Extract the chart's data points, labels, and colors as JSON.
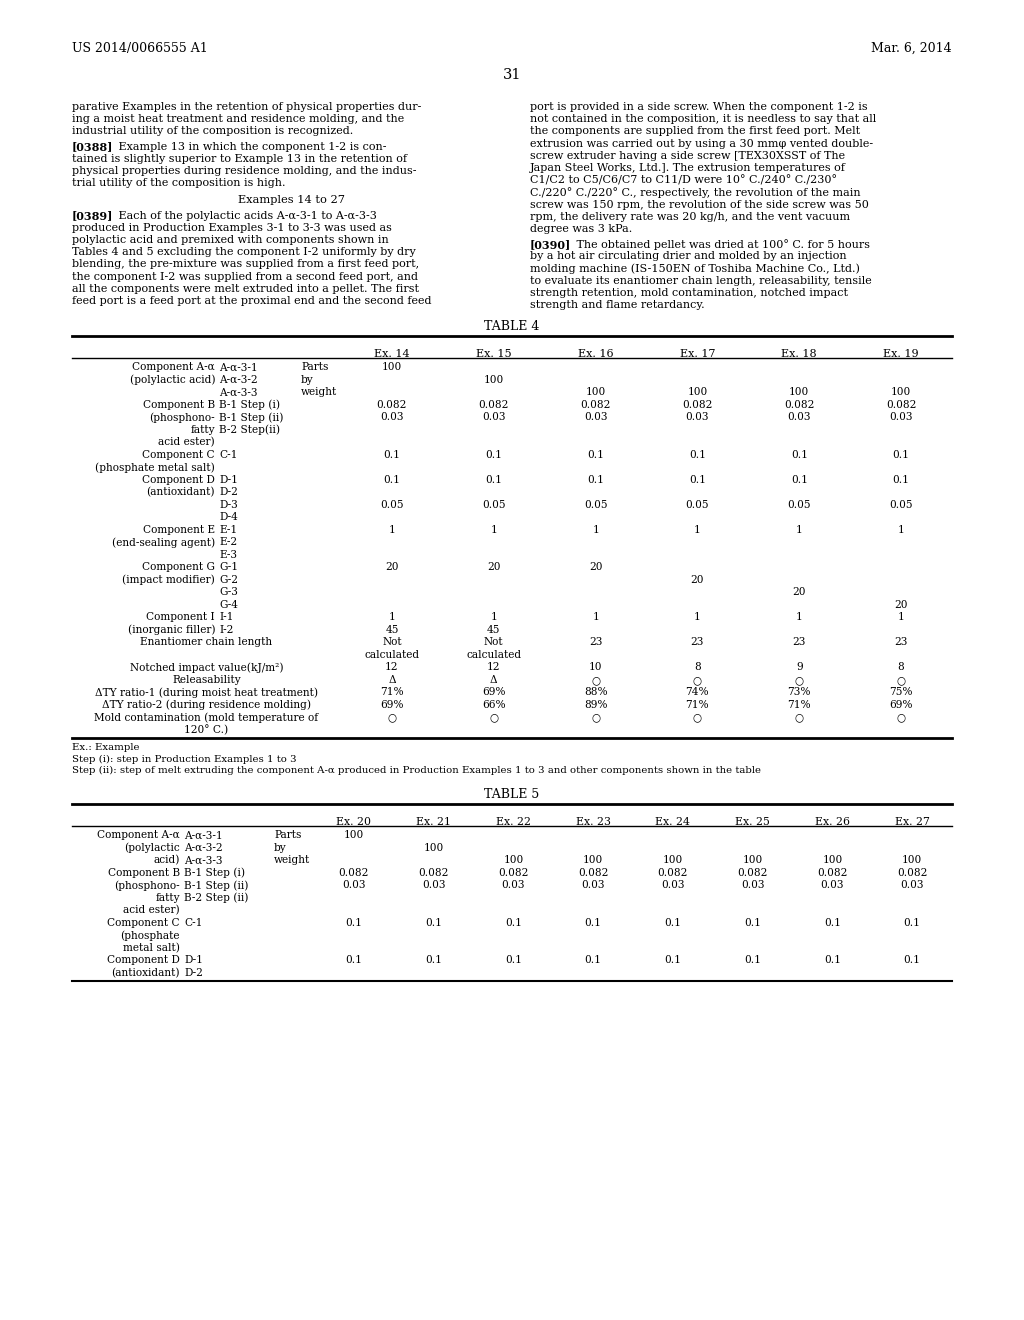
{
  "background_color": "#ffffff",
  "header_left": "US 2014/0066555 A1",
  "header_right": "Mar. 6, 2014",
  "page_number": "31",
  "left_col_para1": "parative Examples in the retention of physical properties dur-\ning a moist heat treatment and residence molding, and the\nindustrial utility of the composition is recognized.",
  "left_col_para2_tag": "[0388]",
  "left_col_para2_text": "   Example 13 in which the component 1-2 is con-\ntained is slightly superior to Example 13 in the retention of\nphysical properties during residence molding, and the indus-\ntrial utility of the composition is high.",
  "left_col_heading": "Examples 14 to 27",
  "left_col_para3_tag": "[0389]",
  "left_col_para3_text": "   Each of the polylactic acids A-α-3-1 to A-α-3-3\nproduced in Production Examples 3-1 to 3-3 was used as\npolylactic acid and premixed with components shown in\nTables 4 and 5 excluding the component I-2 uniformly by dry\nblending, the pre-mixture was supplied from a first feed port,\nthe component I-2 was supplied from a second feed port, and\nall the components were melt extruded into a pellet. The first\nfeed port is a feed port at the proximal end and the second feed",
  "right_col_para1": "port is provided in a side screw. When the component 1-2 is\nnot contained in the composition, it is needless to say that all\nthe components are supplied from the first feed port. Melt\nextrusion was carried out by using a 30 mmφ vented double-\nscrew extruder having a side screw [TEX30XSST of The\nJapan Steel Works, Ltd.]. The extrusion temperatures of\nC1/C2 to C5/C6/C7 to C11/D were 10° C./240° C./230°\nC./220° C./220° C., respectively, the revolution of the main\nscrew was 150 rpm, the revolution of the side screw was 50\nrpm, the delivery rate was 20 kg/h, and the vent vacuum\ndegree was 3 kPa.",
  "right_col_para2_tag": "[0390]",
  "right_col_para2_text": "   The obtained pellet was dried at 100° C. for 5 hours\nby a hot air circulating drier and molded by an injection\nmolding machine (IS-150EN of Toshiba Machine Co., Ltd.)\nto evaluate its enantiomer chain length, releasability, tensile\nstrength retention, mold contamination, notched impact\nstrength and flame retardancy.",
  "table4_title": "TABLE 4",
  "table4_ex_headers": [
    "Ex. 14",
    "Ex. 15",
    "Ex. 16",
    "Ex. 17",
    "Ex. 18",
    "Ex. 19"
  ],
  "table4_rows": [
    [
      "Component A-α",
      "A-α-3-1",
      "Parts",
      "100",
      "",
      "",
      "",
      "",
      ""
    ],
    [
      "(polylactic acid)",
      "A-α-3-2",
      "by",
      "",
      "100",
      "",
      "",
      "",
      ""
    ],
    [
      "",
      "A-α-3-3",
      "weight",
      "",
      "",
      "100",
      "100",
      "100",
      "100"
    ],
    [
      "Component B",
      "B-1 Step (i)",
      "",
      "0.082",
      "0.082",
      "0.082",
      "0.082",
      "0.082",
      "0.082"
    ],
    [
      "(phosphono-",
      "B-1 Step (ii)",
      "",
      "0.03",
      "0.03",
      "0.03",
      "0.03",
      "0.03",
      "0.03"
    ],
    [
      "fatty",
      "B-2 Step(ii)",
      "",
      "",
      "",
      "",
      "",
      "",
      ""
    ],
    [
      "acid ester)",
      "",
      "",
      "",
      "",
      "",
      "",
      "",
      ""
    ],
    [
      "Component C",
      "C-1",
      "",
      "0.1",
      "0.1",
      "0.1",
      "0.1",
      "0.1",
      "0.1"
    ],
    [
      "(phosphate metal salt)",
      "",
      "",
      "",
      "",
      "",
      "",
      "",
      ""
    ],
    [
      "Component D",
      "D-1",
      "",
      "0.1",
      "0.1",
      "0.1",
      "0.1",
      "0.1",
      "0.1"
    ],
    [
      "(antioxidant)",
      "D-2",
      "",
      "",
      "",
      "",
      "",
      "",
      ""
    ],
    [
      "",
      "D-3",
      "",
      "0.05",
      "0.05",
      "0.05",
      "0.05",
      "0.05",
      "0.05"
    ],
    [
      "",
      "D-4",
      "",
      "",
      "",
      "",
      "",
      "",
      ""
    ],
    [
      "Component E",
      "E-1",
      "",
      "1",
      "1",
      "1",
      "1",
      "1",
      "1"
    ],
    [
      "(end-sealing agent)",
      "E-2",
      "",
      "",
      "",
      "",
      "",
      "",
      ""
    ],
    [
      "",
      "E-3",
      "",
      "",
      "",
      "",
      "",
      "",
      ""
    ],
    [
      "Component G",
      "G-1",
      "",
      "20",
      "20",
      "20",
      "",
      "",
      ""
    ],
    [
      "(impact modifier)",
      "G-2",
      "",
      "",
      "",
      "",
      "20",
      "",
      ""
    ],
    [
      "",
      "G-3",
      "",
      "",
      "",
      "",
      "",
      "20",
      ""
    ],
    [
      "",
      "G-4",
      "",
      "",
      "",
      "",
      "",
      "",
      "20"
    ],
    [
      "Component I",
      "I-1",
      "",
      "1",
      "1",
      "1",
      "1",
      "1",
      "1"
    ],
    [
      "(inorganic filler)",
      "I-2",
      "",
      "45",
      "45",
      "",
      "",
      "",
      ""
    ],
    [
      "Enantiomer chain length",
      "",
      "",
      "Not",
      "Not",
      "23",
      "23",
      "23",
      "23"
    ],
    [
      "",
      "",
      "",
      "calculated",
      "calculated",
      "",
      "",
      "",
      ""
    ],
    [
      "Notched impact value(kJ/m²)",
      "",
      "",
      "12",
      "12",
      "10",
      "8",
      "9",
      "8"
    ],
    [
      "Releasability",
      "",
      "",
      "Δ",
      "Δ",
      "○",
      "○",
      "○",
      "○"
    ],
    [
      "ΔTY ratio-1 (during moist heat treatment)",
      "",
      "",
      "71%",
      "69%",
      "88%",
      "74%",
      "73%",
      "75%"
    ],
    [
      "ΔTY ratio-2 (during residence molding)",
      "",
      "",
      "69%",
      "66%",
      "89%",
      "71%",
      "71%",
      "69%"
    ],
    [
      "Mold contamination (mold temperature of",
      "",
      "",
      "○",
      "○",
      "○",
      "○",
      "○",
      "○"
    ],
    [
      "120° C.)",
      "",
      "",
      "",
      "",
      "",
      "",
      "",
      ""
    ]
  ],
  "table4_footnotes": [
    "Ex.: Example",
    "Step (i): step in Production Examples 1 to 3",
    "Step (ii): step of melt extruding the component A-α produced in Production Examples 1 to 3 and other components shown in the table"
  ],
  "table5_title": "TABLE 5",
  "table5_ex_headers": [
    "Ex. 20",
    "Ex. 21",
    "Ex. 22",
    "Ex. 23",
    "Ex. 24",
    "Ex. 25",
    "Ex. 26",
    "Ex. 27"
  ],
  "table5_rows": [
    [
      "Component A-α",
      "A-α-3-1",
      "Parts",
      "100",
      "",
      "",
      "",
      "",
      "",
      "",
      ""
    ],
    [
      "(polylactic",
      "A-α-3-2",
      "by",
      "",
      "100",
      "",
      "",
      "",
      "",
      "",
      ""
    ],
    [
      "acid)",
      "A-α-3-3",
      "weight",
      "",
      "",
      "100",
      "100",
      "100",
      "100",
      "100",
      "100"
    ],
    [
      "Component B",
      "B-1 Step (i)",
      "",
      "0.082",
      "0.082",
      "0.082",
      "0.082",
      "0.082",
      "0.082",
      "0.082",
      "0.082"
    ],
    [
      "(phosphono-",
      "B-1 Step (ii)",
      "",
      "0.03",
      "0.03",
      "0.03",
      "0.03",
      "0.03",
      "0.03",
      "0.03",
      "0.03"
    ],
    [
      "fatty",
      "B-2 Step (ii)",
      "",
      "",
      "",
      "",
      "",
      "",
      "",
      "",
      ""
    ],
    [
      "acid ester)",
      "",
      "",
      "",
      "",
      "",
      "",
      "",
      "",
      "",
      ""
    ],
    [
      "Component C",
      "C-1",
      "",
      "0.1",
      "0.1",
      "0.1",
      "0.1",
      "0.1",
      "0.1",
      "0.1",
      "0.1"
    ],
    [
      "(phosphate",
      "",
      "",
      "",
      "",
      "",
      "",
      "",
      "",
      "",
      ""
    ],
    [
      "metal salt)",
      "",
      "",
      "",
      "",
      "",
      "",
      "",
      "",
      "",
      ""
    ],
    [
      "Component D",
      "D-1",
      "",
      "0.1",
      "0.1",
      "0.1",
      "0.1",
      "0.1",
      "0.1",
      "0.1",
      "0.1"
    ],
    [
      "(antioxidant)",
      "D-2",
      "",
      "",
      "",
      "",
      "",
      "",
      "",
      "",
      ""
    ]
  ]
}
